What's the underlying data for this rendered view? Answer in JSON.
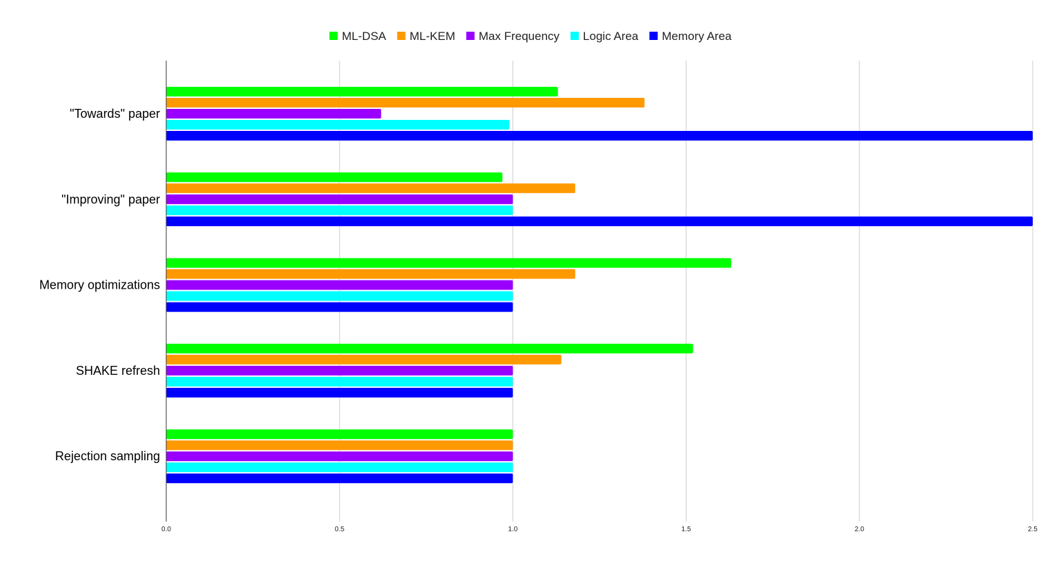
{
  "chart_data": {
    "type": "bar",
    "orientation": "horizontal",
    "title": "",
    "xlabel": "",
    "ylabel": "",
    "xlim": [
      0,
      2.5
    ],
    "x_ticks": [
      "0.0",
      "0.5",
      "1.0",
      "1.5",
      "2.0",
      "2.5"
    ],
    "grid": true,
    "legend_position": "top-center",
    "categories": [
      "\"Towards\" paper",
      "\"Improving\" paper",
      "Memory optimizations",
      "SHAKE refresh",
      "Rejection sampling"
    ],
    "series": [
      {
        "name": "ML-DSA",
        "color": "#00ff00",
        "values": [
          1.13,
          0.97,
          1.63,
          1.52,
          1.0
        ]
      },
      {
        "name": "ML-KEM",
        "color": "#ff9900",
        "values": [
          1.38,
          1.18,
          1.18,
          1.14,
          1.0
        ]
      },
      {
        "name": "Max Frequency",
        "color": "#9900ff",
        "values": [
          0.62,
          1.0,
          1.0,
          1.0,
          1.0
        ]
      },
      {
        "name": "Logic Area",
        "color": "#00ffff",
        "values": [
          0.99,
          1.0,
          1.0,
          1.0,
          1.0
        ]
      },
      {
        "name": "Memory Area",
        "color": "#0000ff",
        "values": [
          2.5,
          2.5,
          1.0,
          1.0,
          1.0
        ]
      }
    ]
  }
}
